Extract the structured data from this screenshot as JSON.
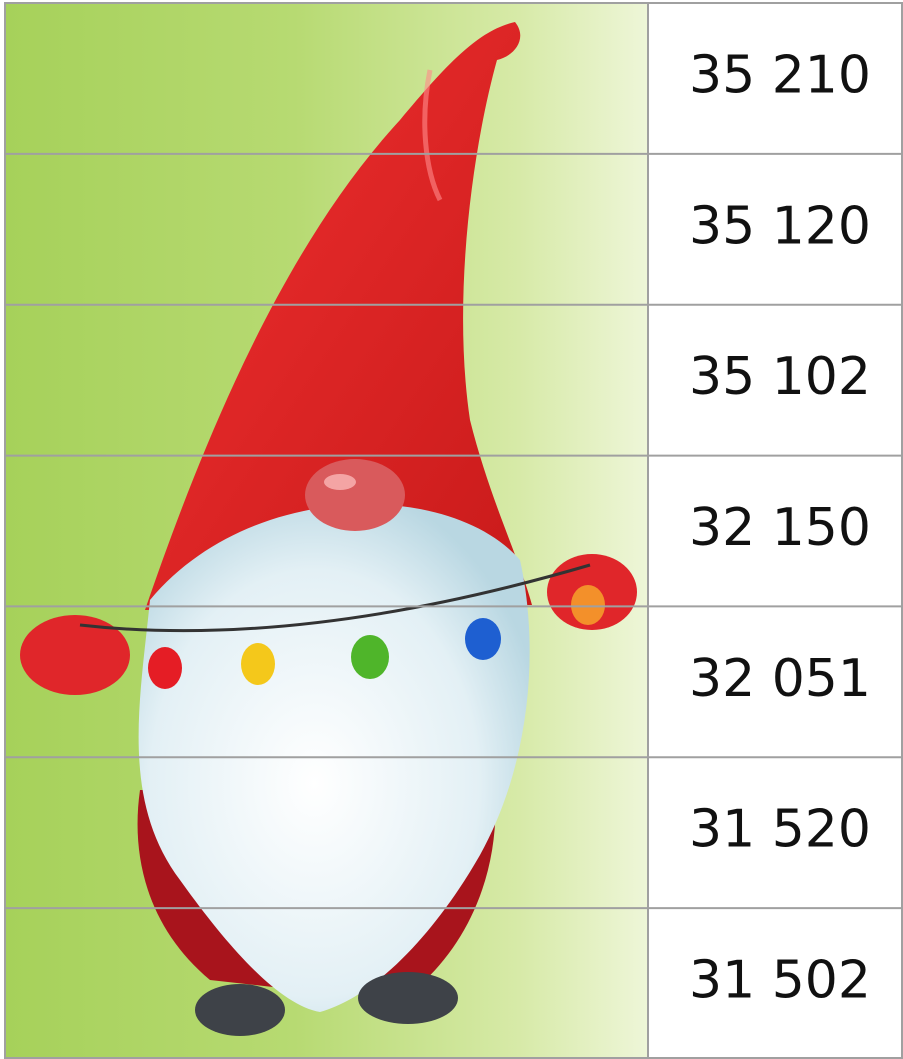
{
  "strips": [
    "35 210",
    "35 120",
    "35 102",
    "32 150",
    "32 051",
    "31 520",
    "31 502"
  ]
}
